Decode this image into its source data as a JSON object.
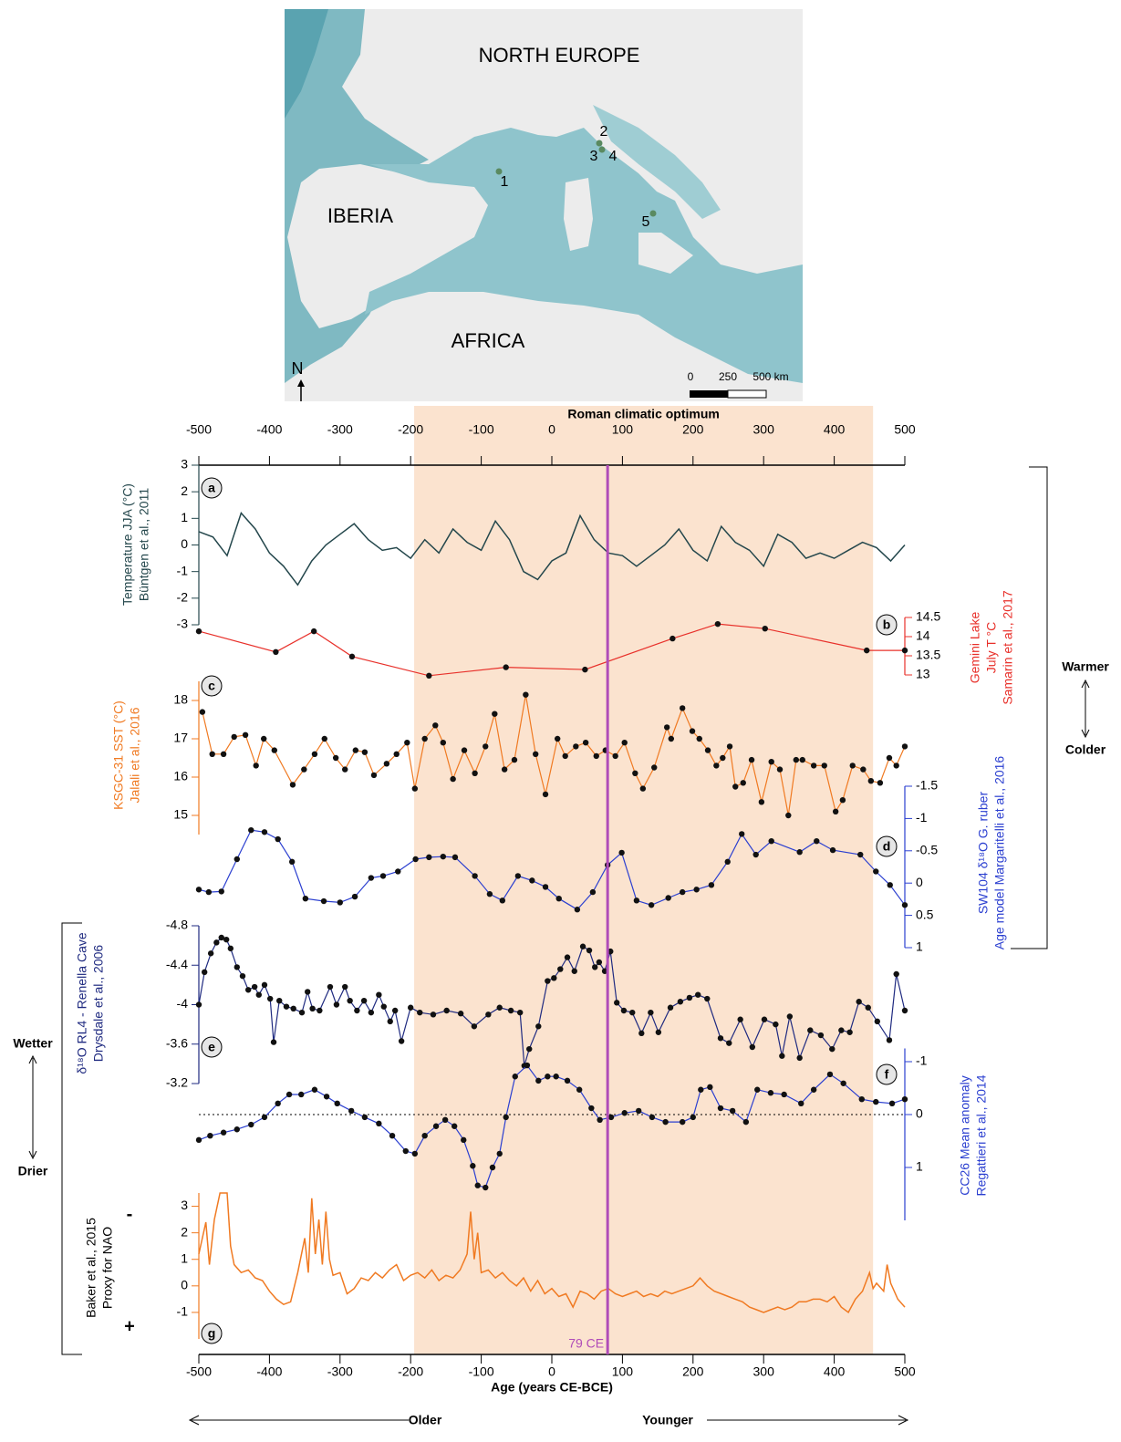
{
  "map": {
    "regions": [
      "NORTH EUROPE",
      "IBERIA",
      "AFRICA"
    ],
    "sites": [
      "1",
      "2",
      "3",
      "4",
      "5"
    ],
    "north": "N",
    "scale": [
      "0",
      "250",
      "500 km"
    ]
  },
  "annotations": {
    "warmer": "Warmer",
    "colder": "Colder",
    "wetter": "Wetter",
    "drier": "Drier",
    "older": "Older",
    "younger": "Younger"
  },
  "chart_data": {
    "type": "line",
    "xlabel": "Age (years CE-BCE)",
    "xlim": [
      -500,
      500
    ],
    "xticks": [
      -500,
      -400,
      -300,
      -200,
      -100,
      0,
      100,
      200,
      300,
      400,
      500
    ],
    "shading": {
      "label": "Roman climatic optimum",
      "range": [
        -195,
        455
      ],
      "color": "#fbe3cf"
    },
    "event": {
      "x": 79,
      "label": "79 CE",
      "color": "#b04cb8"
    },
    "series": [
      {
        "panel": "a",
        "ylabel": [
          "Temperature JJA (°C)",
          "Büntgen et al., 2011"
        ],
        "side": "left",
        "color": "#24474c",
        "axis_color": "#24474c",
        "markers": false,
        "x": [
          -500,
          -480,
          -460,
          -440,
          -420,
          -400,
          -380,
          -360,
          -340,
          -320,
          -300,
          -280,
          -260,
          -240,
          -220,
          -200,
          -180,
          -160,
          -140,
          -120,
          -100,
          -80,
          -60,
          -40,
          -20,
          0,
          20,
          40,
          60,
          80,
          100,
          120,
          140,
          160,
          180,
          200,
          220,
          240,
          260,
          280,
          300,
          320,
          340,
          360,
          380,
          400,
          420,
          440,
          460,
          480,
          500
        ],
        "values": [
          0.5,
          0.3,
          -0.4,
          1.2,
          0.6,
          -0.3,
          -0.8,
          -1.5,
          -0.6,
          0.0,
          0.4,
          0.8,
          0.2,
          -0.2,
          -0.1,
          -0.5,
          0.2,
          -0.3,
          0.6,
          0.1,
          -0.2,
          0.9,
          0.2,
          -1.0,
          -1.3,
          -0.6,
          -0.3,
          1.1,
          0.2,
          -0.3,
          -0.4,
          -0.8,
          -0.4,
          0.0,
          0.6,
          -0.2,
          -0.6,
          0.7,
          0.1,
          -0.2,
          -0.8,
          0.4,
          0.1,
          -0.5,
          -0.3,
          -0.5,
          -0.2,
          0.1,
          -0.1,
          -0.6,
          0.0
        ],
        "ylim": [
          -3,
          3
        ],
        "yticks": [
          -3,
          -2,
          -1,
          0,
          1,
          2,
          3
        ]
      },
      {
        "panel": "b",
        "ylabel": [
          "Gemini Lake",
          "July T °C",
          "Samarin et al., 2017"
        ],
        "side": "right",
        "color": "#e8302a",
        "axis_color": "#e8302a",
        "markers": true,
        "marker_color": "#111111",
        "x": [
          -500,
          -391,
          -337,
          -283,
          -174,
          -65,
          47,
          171,
          235,
          302,
          446,
          500
        ],
        "values": [
          14.14,
          13.6,
          14.14,
          13.48,
          12.98,
          13.2,
          13.14,
          13.95,
          14.33,
          14.21,
          13.64,
          13.64
        ],
        "ylim": [
          13,
          14.5
        ],
        "yticks": [
          13,
          13.5,
          14,
          14.5
        ]
      },
      {
        "panel": "c",
        "ylabel": [
          "KSGC-31 SST (°C)",
          "Jalali et al., 2016"
        ],
        "side": "left",
        "color": "#f07a22",
        "axis_color": "#f07a22",
        "markers": true,
        "marker_color": "#111111",
        "x": [
          -495,
          -481,
          -465,
          -450,
          -434,
          -419,
          -408,
          -393,
          -367,
          -351,
          -336,
          -322,
          -306,
          -293,
          -278,
          -265,
          -252,
          -234,
          -220,
          -205,
          -194,
          -180,
          -165,
          -154,
          -140,
          -124,
          -109,
          -94,
          -81,
          -67,
          -53,
          -37,
          -23,
          -9,
          8,
          19,
          34,
          48,
          63,
          76,
          90,
          103,
          118,
          129,
          145,
          163,
          169,
          185,
          199,
          209,
          221,
          233,
          242,
          252,
          260,
          271,
          283,
          297,
          311,
          323,
          335,
          346,
          355,
          371,
          386,
          402,
          412,
          426,
          441,
          452,
          465,
          478,
          488,
          500
        ],
        "values": [
          17.7,
          16.6,
          16.6,
          17.05,
          17.1,
          16.3,
          17.0,
          16.7,
          15.8,
          16.2,
          16.6,
          17.0,
          16.5,
          16.2,
          16.7,
          16.65,
          16.05,
          16.35,
          16.6,
          16.9,
          15.7,
          17.0,
          17.35,
          16.9,
          15.95,
          16.7,
          16.1,
          16.8,
          17.65,
          16.2,
          16.45,
          18.15,
          16.6,
          15.55,
          17.0,
          16.55,
          16.8,
          16.9,
          16.55,
          16.7,
          16.55,
          16.9,
          16.1,
          15.7,
          16.25,
          17.3,
          17.0,
          17.8,
          17.2,
          17.0,
          16.7,
          16.3,
          16.5,
          16.8,
          15.75,
          15.85,
          16.45,
          15.35,
          16.4,
          16.2,
          15.0,
          16.45,
          16.45,
          16.3,
          16.3,
          15.1,
          15.4,
          16.3,
          16.2,
          15.9,
          15.85,
          16.5,
          16.3,
          16.8
        ],
        "ylim": [
          14.5,
          18.5
        ],
        "yticks": [
          15,
          16,
          17,
          18
        ]
      },
      {
        "panel": "d",
        "ylabel": [
          "SW104 δ¹⁸O G. ruber",
          "Age model Margaritelli et al., 2016"
        ],
        "side": "right",
        "color": "#2b3fd0",
        "axis_color": "#2b3fd0",
        "markers": true,
        "marker_color": "#111111",
        "x": [
          -500,
          -486,
          -468,
          -446,
          -426,
          -407,
          -388,
          -368,
          -349,
          -323,
          -300,
          -279,
          -256,
          -239,
          -218,
          -193,
          -174,
          -154,
          -137,
          -109,
          -88,
          -70,
          -48,
          -28,
          -9,
          10,
          36,
          58,
          79,
          99,
          120,
          141,
          165,
          185,
          205,
          226,
          249,
          269,
          289,
          311,
          351,
          375,
          398,
          437,
          459,
          479,
          500
        ],
        "values": [
          0.1,
          0.14,
          0.13,
          -0.37,
          -0.82,
          -0.79,
          -0.68,
          -0.33,
          0.24,
          0.28,
          0.3,
          0.21,
          -0.08,
          -0.11,
          -0.18,
          -0.37,
          -0.4,
          -0.41,
          -0.4,
          -0.11,
          0.17,
          0.27,
          -0.11,
          -0.04,
          0.06,
          0.24,
          0.41,
          0.14,
          -0.28,
          -0.47,
          0.27,
          0.34,
          0.23,
          0.14,
          0.1,
          0.03,
          -0.33,
          -0.76,
          -0.44,
          -0.65,
          -0.48,
          -0.65,
          -0.51,
          -0.44,
          -0.18,
          0.03,
          0.34
        ],
        "ylim": [
          1,
          -1.5
        ],
        "yticks": [
          -1.5,
          -1,
          -0.5,
          0,
          0.5,
          1
        ]
      },
      {
        "panel": "e",
        "ylabel": [
          "δ¹⁸O RL4 - Renella Cave",
          "Drysdale et al., 2006"
        ],
        "side": "left",
        "color": "#1f2a80",
        "axis_color": "#1f2a80",
        "markers": true,
        "marker_color": "#111111",
        "x": [
          -500,
          -492,
          -483,
          -475,
          -468,
          -461,
          -455,
          -446,
          -438,
          -430,
          -421,
          -415,
          -407,
          -399,
          -394,
          -386,
          -376,
          -366,
          -354,
          -346,
          -339,
          -329,
          -314,
          -305,
          -293,
          -286,
          -276,
          -266,
          -256,
          -245,
          -238,
          -229,
          -222,
          -213,
          -200,
          -187,
          -168,
          -149,
          -129,
          -110,
          -90,
          -74,
          -58,
          -45,
          -39,
          -32,
          -19,
          -6,
          3,
          12,
          22,
          32,
          44,
          53,
          61,
          67,
          75,
          83,
          92,
          102,
          114,
          127,
          140,
          151,
          168,
          182,
          195,
          207,
          220,
          239,
          251,
          267,
          284,
          301,
          317,
          326,
          337,
          351,
          366,
          381,
          397,
          410,
          422,
          435,
          448,
          461,
          478,
          488,
          500
        ],
        "values": [
          -4.0,
          -4.33,
          -4.52,
          -4.63,
          -4.68,
          -4.66,
          -4.57,
          -4.38,
          -4.29,
          -4.15,
          -4.18,
          -4.1,
          -4.2,
          -4.06,
          -3.62,
          -4.04,
          -3.98,
          -3.96,
          -3.92,
          -4.13,
          -3.96,
          -3.94,
          -4.18,
          -4.0,
          -4.18,
          -4.04,
          -3.94,
          -4.04,
          -3.92,
          -4.1,
          -3.98,
          -3.83,
          -3.94,
          -3.63,
          -3.97,
          -3.92,
          -3.9,
          -3.94,
          -3.91,
          -3.78,
          -3.9,
          -3.97,
          -3.94,
          -3.92,
          -3.38,
          -3.55,
          -3.78,
          -4.24,
          -4.27,
          -4.36,
          -4.48,
          -4.34,
          -4.59,
          -4.55,
          -4.38,
          -4.43,
          -4.34,
          -4.54,
          -4.02,
          -3.94,
          -3.92,
          -3.71,
          -3.92,
          -3.72,
          -3.97,
          -4.03,
          -4.07,
          -4.1,
          -4.06,
          -3.66,
          -3.61,
          -3.85,
          -3.57,
          -3.85,
          -3.8,
          -3.48,
          -3.88,
          -3.46,
          -3.74,
          -3.69,
          -3.55,
          -3.74,
          -3.72,
          -4.03,
          -3.97,
          -3.83,
          -3.64,
          -4.31,
          -3.94
        ],
        "ylim": [
          -3.2,
          -4.8
        ],
        "yticks": [
          -4.8,
          -4.4,
          -4,
          -3.6,
          -3.2
        ]
      },
      {
        "panel": "f",
        "ylabel": [
          "CC26 Mean anomaly",
          "Regattieri et al., 2014"
        ],
        "side": "right",
        "color": "#2b3fd0",
        "axis_color": "#2b3fd0",
        "markers": true,
        "marker_color": "#111111",
        "reference_line": 0,
        "x": [
          -500,
          -484,
          -465,
          -446,
          -426,
          -407,
          -388,
          -372,
          -355,
          -336,
          -319,
          -304,
          -284,
          -265,
          -245,
          -226,
          -207,
          -194,
          -180,
          -164,
          -151,
          -138,
          -125,
          -112,
          -105,
          -94,
          -84,
          -74,
          -65,
          -52,
          -35,
          -19,
          -6,
          6,
          22,
          39,
          56,
          68,
          84,
          103,
          123,
          142,
          161,
          185,
          200,
          211,
          224,
          239,
          256,
          275,
          291,
          310,
          329,
          353,
          371,
          394,
          413,
          439,
          459,
          482,
          500
        ],
        "values": [
          0.48,
          0.4,
          0.34,
          0.28,
          0.19,
          0.05,
          -0.21,
          -0.38,
          -0.38,
          -0.47,
          -0.34,
          -0.21,
          -0.07,
          0.05,
          0.17,
          0.4,
          0.69,
          0.74,
          0.4,
          0.22,
          0.1,
          0.22,
          0.48,
          0.97,
          1.34,
          1.38,
          1.0,
          0.74,
          0.05,
          -0.72,
          -0.93,
          -0.64,
          -0.72,
          -0.72,
          -0.64,
          -0.47,
          -0.12,
          0.1,
          0.05,
          -0.03,
          -0.07,
          0.05,
          0.14,
          0.14,
          0.05,
          -0.47,
          -0.52,
          -0.12,
          -0.07,
          0.14,
          -0.47,
          -0.41,
          -0.38,
          -0.21,
          -0.47,
          -0.76,
          -0.59,
          -0.29,
          -0.24,
          -0.21,
          -0.29
        ],
        "ylim": [
          2,
          -1.25
        ],
        "yticks": [
          -1,
          0,
          1
        ]
      },
      {
        "panel": "g",
        "ylabel": [
          "Baker et al., 2015",
          "Proxy for NAO"
        ],
        "sign_top": "-",
        "sign_bottom": "+",
        "side": "left",
        "color": "#f07a22",
        "axis_color": "#f07a22",
        "markers": false,
        "x": [
          -500,
          -490,
          -485,
          -478,
          -470,
          -460,
          -455,
          -450,
          -440,
          -430,
          -420,
          -410,
          -400,
          -390,
          -380,
          -370,
          -360,
          -350,
          -345,
          -340,
          -335,
          -330,
          -325,
          -320,
          -315,
          -310,
          -300,
          -290,
          -280,
          -270,
          -260,
          -250,
          -240,
          -230,
          -220,
          -210,
          -200,
          -190,
          -180,
          -170,
          -160,
          -150,
          -140,
          -130,
          -120,
          -115,
          -110,
          -105,
          -100,
          -90,
          -80,
          -70,
          -60,
          -50,
          -40,
          -30,
          -20,
          -10,
          0,
          10,
          20,
          30,
          40,
          50,
          60,
          70,
          80,
          90,
          100,
          110,
          120,
          130,
          140,
          150,
          160,
          170,
          180,
          190,
          200,
          210,
          220,
          230,
          240,
          250,
          260,
          270,
          280,
          290,
          300,
          310,
          320,
          330,
          340,
          350,
          360,
          370,
          380,
          390,
          400,
          410,
          420,
          430,
          440,
          450,
          455,
          460,
          470,
          475,
          480,
          490,
          500
        ],
        "values": [
          1.2,
          2.4,
          0.8,
          2.5,
          3.5,
          3.5,
          1.5,
          0.8,
          0.5,
          0.6,
          0.3,
          0.2,
          -0.2,
          -0.5,
          -0.7,
          -0.6,
          0.5,
          1.8,
          0.5,
          3.3,
          1.2,
          2.5,
          0.8,
          2.8,
          1.0,
          0.4,
          0.5,
          -0.3,
          -0.1,
          0.3,
          0.2,
          0.5,
          0.3,
          0.6,
          0.8,
          0.2,
          0.4,
          0.5,
          0.3,
          0.6,
          0.2,
          0.4,
          0.3,
          0.6,
          1.2,
          2.8,
          1.0,
          2.0,
          0.5,
          0.6,
          0.3,
          0.5,
          0.2,
          0.0,
          0.3,
          -0.2,
          0.2,
          -0.3,
          -0.1,
          -0.4,
          -0.3,
          -0.8,
          -0.2,
          -0.3,
          -0.5,
          -0.2,
          -0.1,
          -0.3,
          -0.4,
          -0.3,
          -0.2,
          -0.4,
          -0.3,
          -0.4,
          -0.2,
          -0.3,
          -0.2,
          -0.1,
          0.0,
          0.3,
          0.0,
          -0.2,
          -0.3,
          -0.4,
          -0.5,
          -0.6,
          -0.8,
          -0.9,
          -1.0,
          -0.9,
          -0.8,
          -0.9,
          -0.8,
          -0.6,
          -0.6,
          -0.5,
          -0.5,
          -0.6,
          -0.4,
          -0.8,
          -1.0,
          -0.5,
          -0.2,
          0.5,
          -0.1,
          0.1,
          -0.2,
          0.8,
          0.1,
          -0.5,
          -0.8
        ],
        "ylim": [
          -2,
          3.5
        ],
        "yticks": [
          -1,
          0,
          1,
          2,
          3
        ]
      }
    ]
  }
}
